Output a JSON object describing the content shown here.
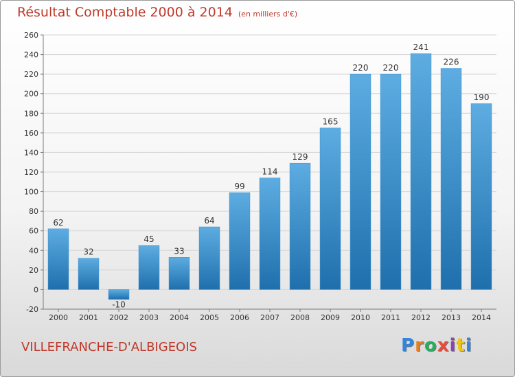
{
  "chart_data": {
    "type": "bar",
    "title": "Résultat Comptable 2000 à 2014",
    "subtitle": "(en milliers d'€)",
    "categories": [
      "2000",
      "2001",
      "2002",
      "2003",
      "2004",
      "2005",
      "2006",
      "2007",
      "2008",
      "2009",
      "2010",
      "2011",
      "2012",
      "2013",
      "2014"
    ],
    "values": [
      62,
      32,
      -10,
      45,
      33,
      64,
      99,
      114,
      129,
      165,
      220,
      220,
      241,
      226,
      190
    ],
    "ylim": [
      -20,
      260
    ],
    "yticks": [
      -20,
      0,
      20,
      40,
      60,
      80,
      100,
      120,
      140,
      160,
      180,
      200,
      220,
      240,
      260
    ],
    "grid": true,
    "xlabel": "",
    "ylabel": ""
  },
  "footer": {
    "location": "VILLEFRANCHE-D'ALBIGEOIS"
  },
  "logo": {
    "letters": [
      "P",
      "r",
      "o",
      "x",
      "i",
      "t",
      "i"
    ],
    "colors": [
      "#2e86de",
      "#e67e22",
      "#27ae60",
      "#e74c3c",
      "#8e44ad",
      "#f1c40f",
      "#2e86de"
    ]
  },
  "colors": {
    "accent": "#c0392b",
    "bar_top": "#5dade2",
    "bar_bottom": "#1f6fad",
    "grid": "#d5d5d5",
    "axis": "#7a7a7a"
  }
}
